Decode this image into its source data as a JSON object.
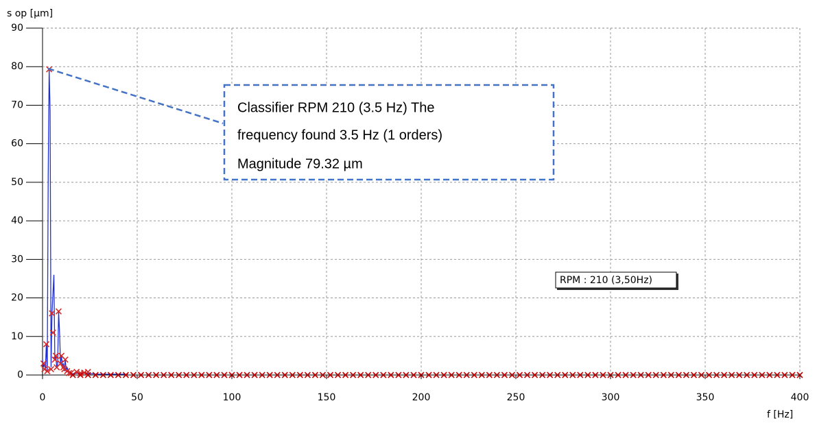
{
  "chart_data": {
    "type": "spectrum",
    "y_label": "s op [µm]",
    "x_label": "f [Hz]",
    "xlim": [
      0,
      400
    ],
    "xticks": [
      0,
      50,
      100,
      150,
      200,
      250,
      300,
      350,
      400
    ],
    "ylim": [
      0,
      90
    ],
    "yticks": [
      0,
      10,
      20,
      30,
      40,
      50,
      60,
      70,
      80,
      90
    ],
    "grid": true,
    "series": [
      {
        "style": "line",
        "color": "#1f2fd6",
        "x": [
          0,
          0.5,
          1,
          1.5,
          2,
          2.5,
          3,
          3.5,
          4,
          4.5,
          5,
          5.5,
          6,
          6.5,
          7,
          7.5,
          8,
          8.5,
          9,
          9.5,
          10,
          10.5,
          11,
          11.5,
          12,
          12.5,
          13,
          13.5,
          14,
          14.5,
          15,
          20,
          30,
          45
        ],
        "values": [
          4,
          2,
          3,
          1.5,
          8,
          1,
          52,
          79.32,
          68.5,
          2,
          16,
          21,
          26,
          4,
          5,
          2,
          3,
          16.5,
          11,
          3,
          5,
          2,
          3,
          1,
          4,
          1,
          2,
          1,
          0.5,
          0.5,
          0.3,
          0.5,
          0.2,
          0.2
        ]
      },
      {
        "style": "markers",
        "color": "#d42a2a",
        "x": [
          0.5,
          1,
          2,
          2.5,
          3.5,
          4.5,
          5,
          5.5,
          6.5,
          7,
          7.5,
          8.5,
          9.5,
          10,
          11,
          11.5,
          12,
          13,
          14,
          15,
          18,
          20,
          22,
          24
        ],
        "values": [
          3,
          1.5,
          8,
          1,
          79.32,
          1.5,
          16,
          11,
          4,
          5,
          2,
          16.5,
          3,
          5,
          2,
          1.5,
          4,
          1,
          0.5,
          0.5,
          0.8,
          0.5,
          0.6,
          0.8
        ]
      },
      {
        "style": "markers",
        "color": "#c00000",
        "x": [
          16,
          20,
          24,
          28,
          32,
          36,
          40,
          44,
          48,
          52,
          56,
          60,
          64,
          68,
          72,
          76,
          80,
          84,
          88,
          92,
          96,
          100,
          104,
          108,
          112,
          116,
          120,
          124,
          128,
          132,
          136,
          140,
          144,
          148,
          152,
          156,
          160,
          164,
          168,
          172,
          176,
          180,
          184,
          188,
          192,
          196,
          200,
          204,
          208,
          212,
          216,
          220,
          224,
          228,
          232,
          236,
          240,
          244,
          248,
          252,
          256,
          260,
          264,
          268,
          272,
          276,
          280,
          284,
          288,
          292,
          296,
          300,
          304,
          308,
          312,
          316,
          320,
          324,
          328,
          332,
          336,
          340,
          344,
          348,
          352,
          356,
          360,
          364,
          368,
          372,
          376,
          380,
          384,
          388,
          392,
          396,
          400
        ],
        "values": [
          0,
          0,
          0,
          0,
          0,
          0,
          0,
          0,
          0,
          0,
          0,
          0,
          0,
          0,
          0,
          0,
          0,
          0,
          0,
          0,
          0,
          0,
          0,
          0,
          0,
          0,
          0,
          0,
          0,
          0,
          0,
          0,
          0,
          0,
          0,
          0,
          0,
          0,
          0,
          0,
          0,
          0,
          0,
          0,
          0,
          0,
          0,
          0,
          0,
          0,
          0,
          0,
          0,
          0,
          0,
          0,
          0,
          0,
          0,
          0,
          0,
          0,
          0,
          0,
          0,
          0,
          0,
          0,
          0,
          0,
          0,
          0,
          0,
          0,
          0,
          0,
          0,
          0,
          0,
          0,
          0,
          0,
          0,
          0,
          0,
          0,
          0,
          0,
          0,
          0,
          0,
          0,
          0,
          0,
          0,
          0,
          0
        ]
      }
    ],
    "annotation": [
      "Classifier RPM 210 (3.5 Hz)  The",
      "frequency found 3.5 Hz (1 orders)",
      "Magnitude 79.32 µm"
    ],
    "rpm_label": "RPM : 210 (3,50Hz)"
  }
}
